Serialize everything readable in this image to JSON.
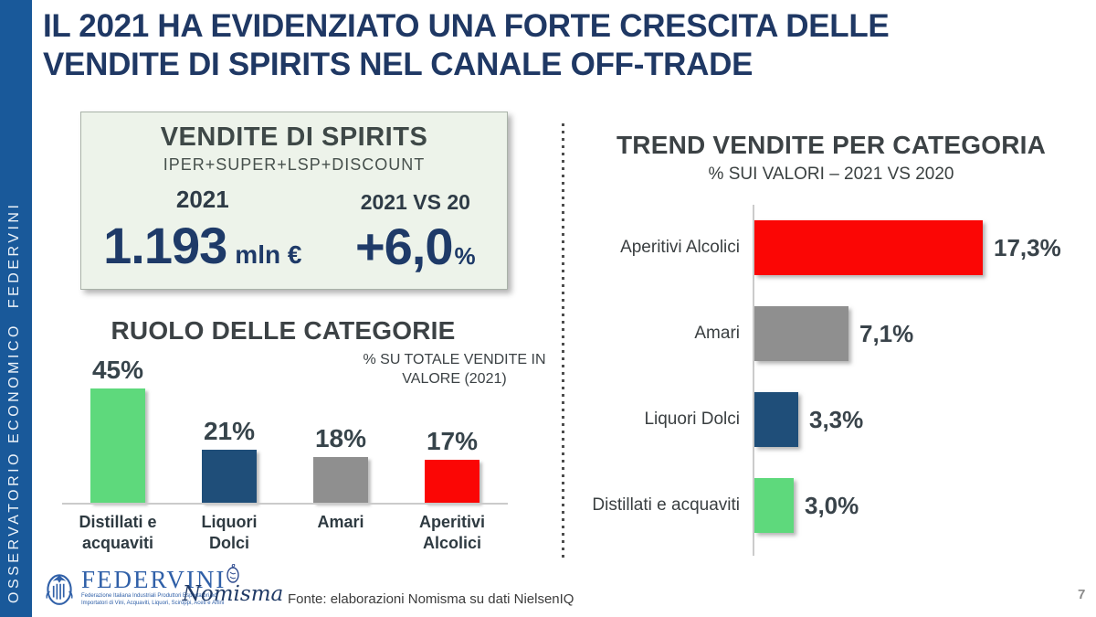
{
  "slide": {
    "title_line1": "IL 2021 HA EVIDENZIATO UNA FORTE CRESCITA DELLE",
    "title_line2": "VENDITE DI SPIRITS NEL CANALE OFF-TRADE",
    "page_number": "7"
  },
  "sidebar": {
    "text": "OSSERVATORIO ECONOMICO  FEDERVINI"
  },
  "sales_box": {
    "title": "VENDITE DI SPIRITS",
    "subtitle": "IPER+SUPER+LSP+DISCOUNT",
    "year_label": "2021",
    "vs_label": "2021 VS 20",
    "value": "1.193",
    "value_unit": "mln €",
    "delta": "+6,0",
    "delta_unit": "%"
  },
  "footer": {
    "federvini_name": "FEDERVINI",
    "federvini_tagline_line1": "Federazione Italiana Industriali Produttori Esportatori ed",
    "federvini_tagline_line2": "Importatori di Vini, Acquaviti, Liquori, Sciroppi, Aceti e Affini",
    "nomisma_name": "Nomisma",
    "source": "Fonte: elaborazioni Nomisma su dati NielsenIQ"
  },
  "colors": {
    "sidebar_blue": "#19599A",
    "title_navy": "#1F3864",
    "value_navy": "#1E3A68",
    "green": "#5ED97C",
    "navy_bar": "#1F4E79",
    "gray_bar": "#8F8F8F",
    "red_bar": "#FB0605",
    "box_bg": "#EDF3EA"
  },
  "chart_data": [
    {
      "type": "bar",
      "orientation": "vertical",
      "title": "RUOLO DELLE CATEGORIE",
      "note_line1": "% SU TOTALE VENDITE IN",
      "note_line2": "VALORE (2021)",
      "categories": [
        "Distillati e acquaviti",
        "Liquori Dolci",
        "Amari",
        "Aperitivi Alcolici"
      ],
      "values": [
        45,
        21,
        18,
        17
      ],
      "value_labels": [
        "45%",
        "21%",
        "18%",
        "17%"
      ],
      "bar_colors": [
        "#5ED97C",
        "#1F4E79",
        "#8F8F8F",
        "#FB0605"
      ],
      "unit": "%",
      "ylim": [
        0,
        50
      ],
      "grid": false,
      "legend": "none"
    },
    {
      "type": "bar",
      "orientation": "horizontal",
      "title": "TREND VENDITE PER CATEGORIA",
      "subtitle": "% SUI VALORI – 2021 VS 2020",
      "categories": [
        "Aperitivi Alcolici",
        "Amari",
        "Liquori Dolci",
        "Distillati e acquaviti"
      ],
      "values": [
        17.3,
        7.1,
        3.3,
        3.0
      ],
      "value_labels": [
        "17,3%",
        "7,1%",
        "3,3%",
        "3,0%"
      ],
      "bar_colors": [
        "#FB0605",
        "#8F8F8F",
        "#1F4E79",
        "#5ED97C"
      ],
      "unit": "%",
      "xlim": [
        0,
        18
      ],
      "grid": false,
      "legend": "none"
    }
  ]
}
